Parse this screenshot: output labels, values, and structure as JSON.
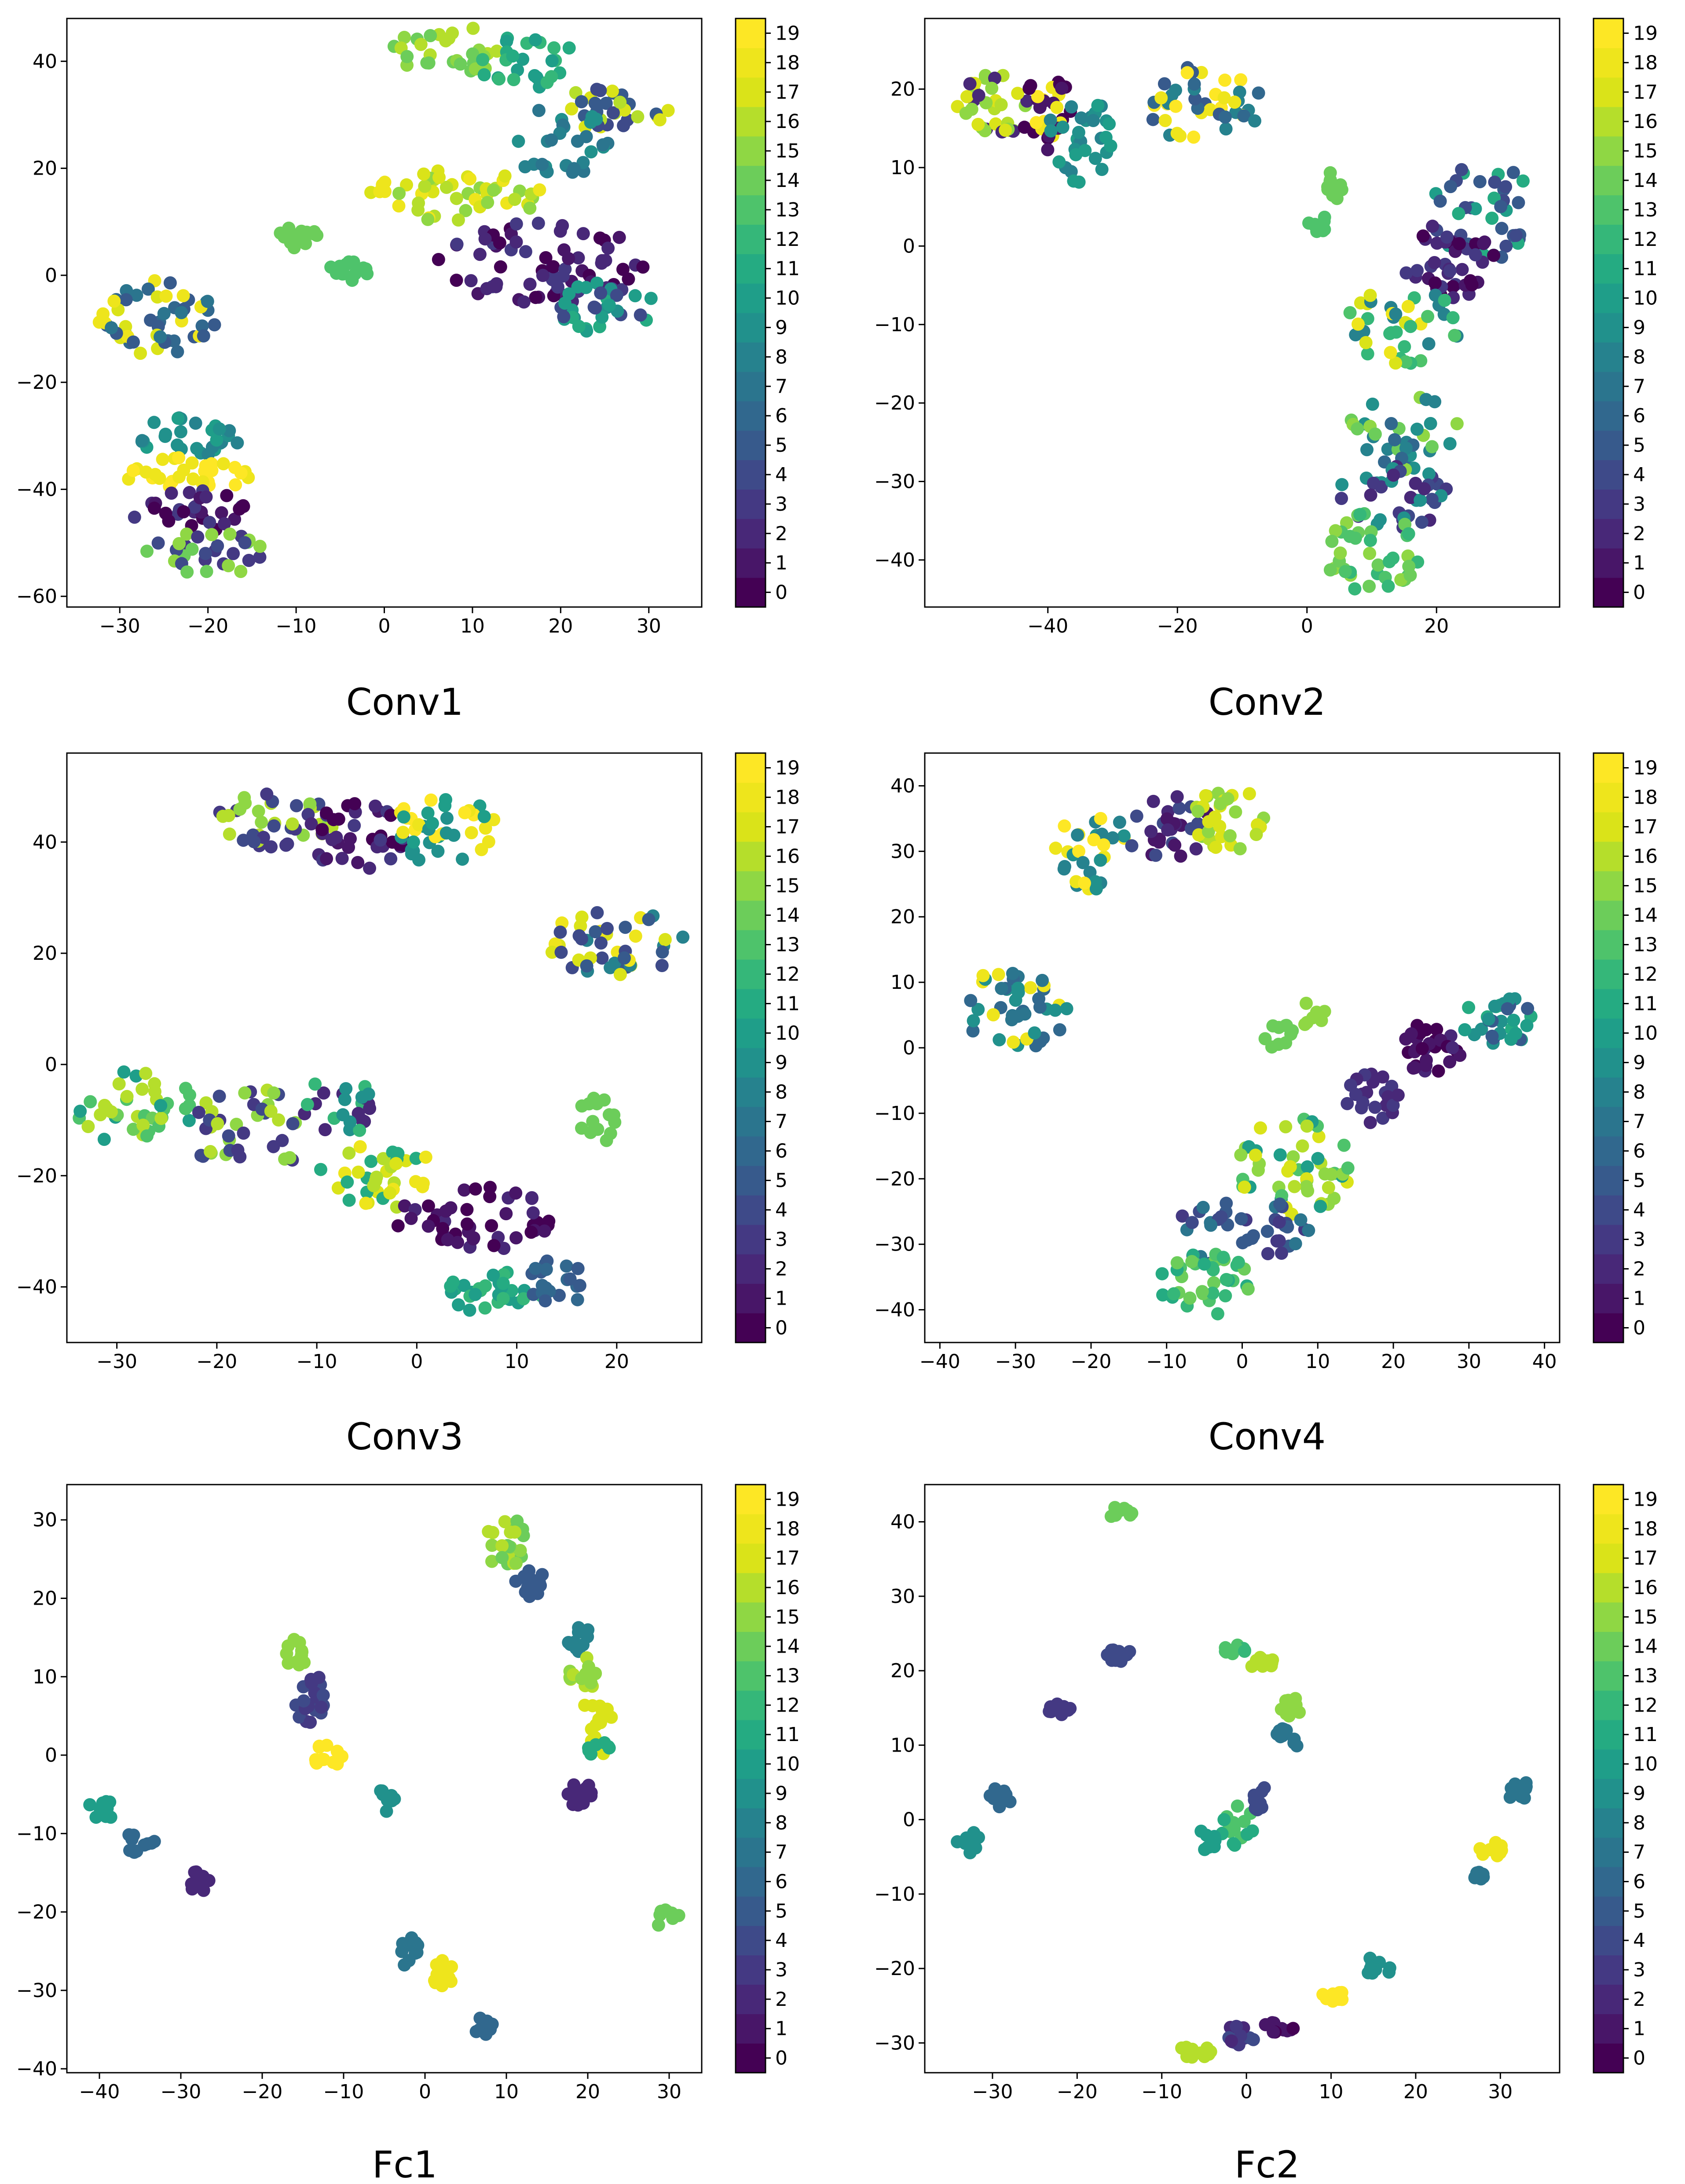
{
  "figure": {
    "type": "tsne_grid",
    "panel_count": 6
  },
  "colorbar": {
    "ticks": [
      "0",
      "1",
      "2",
      "3",
      "4",
      "5",
      "6",
      "7",
      "8",
      "9",
      "10",
      "11",
      "12",
      "13",
      "14",
      "15",
      "16",
      "17",
      "18",
      "19"
    ],
    "colors": [
      "#440154",
      "#481668",
      "#482878",
      "#443983",
      "#3e4a89",
      "#375a8c",
      "#31688e",
      "#2b758e",
      "#26828e",
      "#21918c",
      "#1f9e89",
      "#25ab82",
      "#35b779",
      "#4ec36b",
      "#6ccd5a",
      "#8fd744",
      "#b5de2b",
      "#dae319",
      "#eee51c",
      "#fde725"
    ]
  },
  "chart_data": [
    {
      "type": "scatter",
      "title": "Conv1",
      "xlim": [
        -36,
        36
      ],
      "ylim": [
        -62,
        48
      ],
      "xticks": [
        -30,
        -20,
        -10,
        0,
        10,
        20,
        30
      ],
      "yticks": [
        -60,
        -40,
        -20,
        0,
        20,
        40
      ],
      "clusters": [
        {
          "x": 7,
          "y": 42,
          "rx": 7,
          "ry": 5,
          "labels": [
            15,
            14,
            16
          ],
          "n": 28
        },
        {
          "x": 16,
          "y": 40,
          "rx": 6,
          "ry": 5,
          "labels": [
            11,
            10,
            12
          ],
          "n": 26
        },
        {
          "x": 26,
          "y": 31,
          "rx": 7,
          "ry": 4,
          "labels": [
            16,
            17,
            4,
            5
          ],
          "n": 30
        },
        {
          "x": 20,
          "y": 25,
          "rx": 6,
          "ry": 7,
          "labels": [
            8,
            9,
            7
          ],
          "n": 28
        },
        {
          "x": 8,
          "y": 15,
          "rx": 10,
          "ry": 5,
          "labels": [
            17,
            16,
            18,
            15
          ],
          "n": 48
        },
        {
          "x": 18,
          "y": 2,
          "rx": 12,
          "ry": 8,
          "labels": [
            1,
            2,
            3,
            0
          ],
          "n": 70
        },
        {
          "x": 25,
          "y": -6,
          "rx": 6,
          "ry": 5,
          "labels": [
            10,
            9,
            4,
            11
          ],
          "n": 30
        },
        {
          "x": -10,
          "y": 7,
          "rx": 3,
          "ry": 2,
          "labels": [
            14
          ],
          "n": 14
        },
        {
          "x": -4,
          "y": 1,
          "rx": 2.5,
          "ry": 2,
          "labels": [
            13
          ],
          "n": 14
        },
        {
          "x": -26,
          "y": -8,
          "rx": 7,
          "ry": 7,
          "labels": [
            6,
            7,
            5,
            18,
            17
          ],
          "n": 50
        },
        {
          "x": -22,
          "y": -30,
          "rx": 6,
          "ry": 4,
          "labels": [
            9,
            8,
            10
          ],
          "n": 30
        },
        {
          "x": -22,
          "y": -37,
          "rx": 8,
          "ry": 3,
          "labels": [
            19,
            18
          ],
          "n": 30
        },
        {
          "x": -22,
          "y": -44,
          "rx": 7,
          "ry": 4,
          "labels": [
            0,
            1,
            2,
            3
          ],
          "n": 30
        },
        {
          "x": -20,
          "y": -52,
          "rx": 7,
          "ry": 4,
          "labels": [
            15,
            14,
            4,
            3
          ],
          "n": 30
        }
      ]
    },
    {
      "type": "scatter",
      "title": "Conv2",
      "xlim": [
        -59,
        39
      ],
      "ylim": [
        -46,
        29
      ],
      "xticks": [
        -40,
        -20,
        0,
        20
      ],
      "yticks": [
        -40,
        -30,
        -20,
        -10,
        0,
        10,
        20
      ],
      "clusters": [
        {
          "x": -48,
          "y": 18,
          "rx": 6,
          "ry": 4,
          "labels": [
            16,
            17,
            15,
            2
          ],
          "n": 34
        },
        {
          "x": -40,
          "y": 17,
          "rx": 4,
          "ry": 5,
          "labels": [
            1,
            0,
            19,
            18
          ],
          "n": 30
        },
        {
          "x": -35,
          "y": 14,
          "rx": 5,
          "ry": 6,
          "labels": [
            9,
            10,
            8
          ],
          "n": 32
        },
        {
          "x": -16,
          "y": 18,
          "rx": 9,
          "ry": 5,
          "labels": [
            8,
            19,
            18,
            6,
            5
          ],
          "n": 44
        },
        {
          "x": 5,
          "y": 8,
          "rx": 2,
          "ry": 2,
          "labels": [
            14
          ],
          "n": 10
        },
        {
          "x": 2,
          "y": 3,
          "rx": 2,
          "ry": 1.5,
          "labels": [
            13
          ],
          "n": 8
        },
        {
          "x": 27,
          "y": 5,
          "rx": 8,
          "ry": 7,
          "labels": [
            4,
            5,
            10,
            11
          ],
          "n": 40
        },
        {
          "x": 22,
          "y": -2,
          "rx": 7,
          "ry": 5,
          "labels": [
            2,
            1,
            3,
            0
          ],
          "n": 40
        },
        {
          "x": 15,
          "y": -10,
          "rx": 9,
          "ry": 5,
          "labels": [
            17,
            18,
            13,
            12,
            8
          ],
          "n": 40
        },
        {
          "x": 15,
          "y": -24,
          "rx": 9,
          "ry": 5,
          "labels": [
            15,
            14,
            8,
            9,
            6
          ],
          "n": 36
        },
        {
          "x": 13,
          "y": -32,
          "rx": 9,
          "ry": 4,
          "labels": [
            3,
            4,
            2,
            9
          ],
          "n": 36
        },
        {
          "x": 10,
          "y": -39,
          "rx": 8,
          "ry": 5,
          "labels": [
            14,
            13,
            12,
            15
          ],
          "n": 40
        }
      ]
    },
    {
      "type": "scatter",
      "title": "Conv3",
      "xlim": [
        -35,
        28.5
      ],
      "ylim": [
        -50,
        56
      ],
      "xticks": [
        -30,
        -20,
        -10,
        0,
        10,
        20
      ],
      "yticks": [
        -40,
        -20,
        0,
        20,
        40
      ],
      "clusters": [
        {
          "x": -14,
          "y": 44,
          "rx": 6,
          "ry": 5,
          "labels": [
            15,
            16,
            4,
            3
          ],
          "n": 40
        },
        {
          "x": -6,
          "y": 41,
          "rx": 5,
          "ry": 6,
          "labels": [
            2,
            1,
            0,
            3
          ],
          "n": 36
        },
        {
          "x": 3,
          "y": 42,
          "rx": 6,
          "ry": 6,
          "labels": [
            19,
            18,
            9,
            10
          ],
          "n": 40
        },
        {
          "x": 20,
          "y": 22,
          "rx": 7,
          "ry": 6,
          "labels": [
            5,
            4,
            17,
            18,
            8
          ],
          "n": 44
        },
        {
          "x": -28,
          "y": -8,
          "rx": 6,
          "ry": 7,
          "labels": [
            13,
            14,
            10,
            16
          ],
          "n": 40
        },
        {
          "x": -17,
          "y": -12,
          "rx": 6,
          "ry": 8,
          "labels": [
            3,
            4,
            16,
            15
          ],
          "n": 40
        },
        {
          "x": -8,
          "y": -8,
          "rx": 4,
          "ry": 6,
          "labels": [
            9,
            12,
            2
          ],
          "n": 24
        },
        {
          "x": -4,
          "y": -20,
          "rx": 6,
          "ry": 6,
          "labels": [
            17,
            16,
            18,
            11
          ],
          "n": 36
        },
        {
          "x": 6,
          "y": -28,
          "rx": 8,
          "ry": 6,
          "labels": [
            1,
            2,
            0
          ],
          "n": 46
        },
        {
          "x": 18,
          "y": -10,
          "rx": 2.5,
          "ry": 4,
          "labels": [
            14
          ],
          "n": 14
        },
        {
          "x": 8,
          "y": -41,
          "rx": 5,
          "ry": 4,
          "labels": [
            11,
            10,
            12
          ],
          "n": 30
        },
        {
          "x": 14,
          "y": -39,
          "rx": 4,
          "ry": 4,
          "labels": [
            5,
            6
          ],
          "n": 22
        }
      ]
    },
    {
      "type": "scatter",
      "title": "Conv4",
      "xlim": [
        -42,
        42
      ],
      "ylim": [
        -45,
        45
      ],
      "xticks": [
        -40,
        -30,
        -20,
        -10,
        0,
        10,
        20,
        30,
        40
      ],
      "yticks": [
        -40,
        -30,
        -20,
        -10,
        0,
        10,
        20,
        30,
        40
      ],
      "clusters": [
        {
          "x": -20,
          "y": 30,
          "rx": 5,
          "ry": 7,
          "labels": [
            8,
            9,
            19,
            18
          ],
          "n": 30
        },
        {
          "x": -10,
          "y": 34,
          "rx": 6,
          "ry": 5,
          "labels": [
            1,
            2,
            4
          ],
          "n": 30
        },
        {
          "x": -2,
          "y": 35,
          "rx": 6,
          "ry": 5,
          "labels": [
            15,
            16,
            17
          ],
          "n": 30
        },
        {
          "x": -30,
          "y": 6,
          "rx": 7,
          "ry": 7,
          "labels": [
            6,
            7,
            18,
            9
          ],
          "n": 44
        },
        {
          "x": 4,
          "y": 2,
          "rx": 3,
          "ry": 2,
          "labels": [
            14
          ],
          "n": 10
        },
        {
          "x": 9,
          "y": 5,
          "rx": 2,
          "ry": 2,
          "labels": [
            15
          ],
          "n": 8
        },
        {
          "x": 25,
          "y": 0,
          "rx": 4,
          "ry": 4,
          "labels": [
            1,
            0,
            2
          ],
          "n": 30
        },
        {
          "x": 34,
          "y": 4,
          "rx": 5,
          "ry": 4,
          "labels": [
            10,
            9,
            5,
            11
          ],
          "n": 30
        },
        {
          "x": 17,
          "y": -8,
          "rx": 4,
          "ry": 4,
          "labels": [
            3,
            2
          ],
          "n": 22
        },
        {
          "x": 8,
          "y": -18,
          "rx": 9,
          "ry": 8,
          "labels": [
            16,
            17,
            13,
            15,
            10
          ],
          "n": 50
        },
        {
          "x": 0,
          "y": -28,
          "rx": 9,
          "ry": 6,
          "labels": [
            3,
            4,
            7,
            5
          ],
          "n": 40
        },
        {
          "x": -5,
          "y": -36,
          "rx": 6,
          "ry": 5,
          "labels": [
            13,
            12,
            14,
            11
          ],
          "n": 36
        }
      ]
    },
    {
      "type": "scatter",
      "title": "Fc1",
      "xlim": [
        -44,
        34
      ],
      "ylim": [
        -40.5,
        34.5
      ],
      "xticks": [
        -40,
        -30,
        -20,
        -10,
        0,
        10,
        20,
        30
      ],
      "yticks": [
        -40,
        -30,
        -20,
        -10,
        0,
        10,
        20,
        30
      ],
      "clusters": [
        {
          "x": 10,
          "y": 27,
          "rx": 2.5,
          "ry": 3.5,
          "labels": [
            15,
            16,
            14
          ],
          "n": 22
        },
        {
          "x": 13,
          "y": 22,
          "rx": 2,
          "ry": 2,
          "labels": [
            5
          ],
          "n": 12
        },
        {
          "x": 19,
          "y": 15,
          "rx": 2,
          "ry": 2,
          "labels": [
            8
          ],
          "n": 12
        },
        {
          "x": 19.5,
          "y": 10,
          "rx": 2,
          "ry": 2.5,
          "labels": [
            16,
            15
          ],
          "n": 14
        },
        {
          "x": 21,
          "y": 5,
          "rx": 2,
          "ry": 2,
          "labels": [
            17
          ],
          "n": 10
        },
        {
          "x": 21,
          "y": 1,
          "rx": 2,
          "ry": 1.5,
          "labels": [
            11,
            17
          ],
          "n": 10
        },
        {
          "x": 19,
          "y": -5,
          "rx": 2,
          "ry": 1.5,
          "labels": [
            2
          ],
          "n": 12
        },
        {
          "x": -16,
          "y": 13,
          "rx": 1.5,
          "ry": 2,
          "labels": [
            15
          ],
          "n": 12
        },
        {
          "x": -14,
          "y": 7,
          "rx": 2,
          "ry": 3.5,
          "labels": [
            4,
            3
          ],
          "n": 24
        },
        {
          "x": -12,
          "y": 0,
          "rx": 2,
          "ry": 1.5,
          "labels": [
            19
          ],
          "n": 14
        },
        {
          "x": -5,
          "y": -6,
          "rx": 1.5,
          "ry": 2,
          "labels": [
            9
          ],
          "n": 10
        },
        {
          "x": -40,
          "y": -7,
          "rx": 2,
          "ry": 1.5,
          "labels": [
            10
          ],
          "n": 10
        },
        {
          "x": -35,
          "y": -11,
          "rx": 2,
          "ry": 1.5,
          "labels": [
            6
          ],
          "n": 10
        },
        {
          "x": -28,
          "y": -16,
          "rx": 1.5,
          "ry": 1.5,
          "labels": [
            2
          ],
          "n": 10
        },
        {
          "x": -2,
          "y": -25,
          "rx": 1.5,
          "ry": 2,
          "labels": [
            7
          ],
          "n": 12
        },
        {
          "x": 2,
          "y": -28,
          "rx": 1.5,
          "ry": 2,
          "labels": [
            18
          ],
          "n": 12
        },
        {
          "x": 7,
          "y": -35,
          "rx": 1.5,
          "ry": 1.5,
          "labels": [
            6
          ],
          "n": 10
        },
        {
          "x": 30,
          "y": -21,
          "rx": 1.5,
          "ry": 1.5,
          "labels": [
            14
          ],
          "n": 10
        }
      ]
    },
    {
      "type": "scatter",
      "title": "Fc2",
      "xlim": [
        -38,
        37
      ],
      "ylim": [
        -34,
        45
      ],
      "xticks": [
        -30,
        -20,
        -10,
        0,
        10,
        20,
        30
      ],
      "yticks": [
        -30,
        -20,
        -10,
        0,
        10,
        20,
        30,
        40
      ],
      "clusters": [
        {
          "x": -15,
          "y": 41,
          "rx": 1.5,
          "ry": 1,
          "labels": [
            14
          ],
          "n": 10
        },
        {
          "x": -15,
          "y": 22,
          "rx": 1.5,
          "ry": 1,
          "labels": [
            4
          ],
          "n": 10
        },
        {
          "x": -22,
          "y": 15,
          "rx": 1.5,
          "ry": 1,
          "labels": [
            3
          ],
          "n": 10
        },
        {
          "x": -1,
          "y": 23,
          "rx": 2,
          "ry": 1,
          "labels": [
            12,
            13
          ],
          "n": 10
        },
        {
          "x": 2,
          "y": 21,
          "rx": 1.5,
          "ry": 1.5,
          "labels": [
            16
          ],
          "n": 10
        },
        {
          "x": 5,
          "y": 15,
          "rx": 1.5,
          "ry": 1.5,
          "labels": [
            15
          ],
          "n": 10
        },
        {
          "x": 5,
          "y": 11,
          "rx": 1.5,
          "ry": 1.5,
          "labels": [
            7
          ],
          "n": 10
        },
        {
          "x": -1,
          "y": -1,
          "rx": 2,
          "ry": 3,
          "labels": [
            13,
            11
          ],
          "n": 16
        },
        {
          "x": 2,
          "y": 3,
          "rx": 1.5,
          "ry": 2,
          "labels": [
            4
          ],
          "n": 10
        },
        {
          "x": -5,
          "y": -3,
          "rx": 1.5,
          "ry": 1.5,
          "labels": [
            10
          ],
          "n": 8
        },
        {
          "x": -29,
          "y": 3,
          "rx": 1.5,
          "ry": 1.5,
          "labels": [
            6
          ],
          "n": 10
        },
        {
          "x": -33,
          "y": -3,
          "rx": 1.5,
          "ry": 1.5,
          "labels": [
            9
          ],
          "n": 10
        },
        {
          "x": 32,
          "y": 4,
          "rx": 1.5,
          "ry": 1.5,
          "labels": [
            7
          ],
          "n": 10
        },
        {
          "x": 29,
          "y": -4,
          "rx": 1.5,
          "ry": 1,
          "labels": [
            18
          ],
          "n": 10
        },
        {
          "x": 27,
          "y": -8,
          "rx": 1.5,
          "ry": 1,
          "labels": [
            7
          ],
          "n": 8
        },
        {
          "x": 15,
          "y": -20,
          "rx": 2,
          "ry": 1.5,
          "labels": [
            9
          ],
          "n": 10
        },
        {
          "x": 10,
          "y": -24,
          "rx": 2,
          "ry": 1,
          "labels": [
            19
          ],
          "n": 10
        },
        {
          "x": -1,
          "y": -29,
          "rx": 3,
          "ry": 1.5,
          "labels": [
            3,
            4,
            2
          ],
          "n": 16
        },
        {
          "x": 4,
          "y": -28,
          "rx": 2,
          "ry": 1,
          "labels": [
            1,
            0
          ],
          "n": 10
        },
        {
          "x": -6,
          "y": -31,
          "rx": 2,
          "ry": 1,
          "labels": [
            16
          ],
          "n": 10
        }
      ]
    }
  ]
}
